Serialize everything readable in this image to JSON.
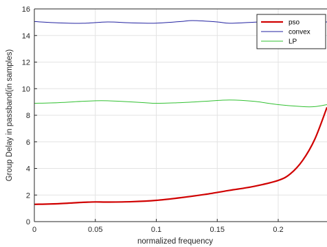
{
  "chart_data": {
    "type": "line",
    "title": "",
    "xlabel": "normalized frequency",
    "ylabel": "Group Delay in passband(in samples)",
    "xlim": [
      0,
      0.24
    ],
    "ylim": [
      0,
      16
    ],
    "xticks": [
      0,
      0.05,
      0.1,
      0.15,
      0.2
    ],
    "xtick_labels": [
      "0",
      "0.05",
      "0.1",
      "0.15",
      "0.2"
    ],
    "yticks": [
      0,
      2,
      4,
      6,
      8,
      10,
      12,
      14,
      16
    ],
    "ytick_labels": [
      "0",
      "2",
      "4",
      "6",
      "8",
      "10",
      "12",
      "14",
      "16"
    ],
    "grid": true,
    "legend_position": "top-right",
    "series": [
      {
        "name": "pso",
        "color": "#d00000",
        "x": [
          0,
          0.02,
          0.04,
          0.05,
          0.06,
          0.08,
          0.1,
          0.12,
          0.14,
          0.16,
          0.18,
          0.2,
          0.21,
          0.22,
          0.23,
          0.24
        ],
        "y": [
          1.3,
          1.35,
          1.45,
          1.48,
          1.47,
          1.5,
          1.6,
          1.8,
          2.05,
          2.35,
          2.65,
          3.1,
          3.6,
          4.6,
          6.2,
          8.6
        ]
      },
      {
        "name": "convex",
        "color": "#2020a0",
        "x": [
          0,
          0.02,
          0.04,
          0.06,
          0.08,
          0.1,
          0.12,
          0.13,
          0.15,
          0.16,
          0.18,
          0.2,
          0.22,
          0.24
        ],
        "y": [
          15.05,
          14.95,
          14.92,
          15.02,
          14.95,
          14.93,
          15.05,
          15.12,
          15.02,
          14.92,
          15.0,
          15.1,
          15.0,
          15.02
        ]
      },
      {
        "name": "LP",
        "color": "#30c030",
        "x": [
          0,
          0.02,
          0.04,
          0.055,
          0.07,
          0.09,
          0.1,
          0.12,
          0.14,
          0.16,
          0.18,
          0.2,
          0.22,
          0.23,
          0.24
        ],
        "y": [
          8.9,
          8.95,
          9.05,
          9.1,
          9.05,
          8.95,
          8.9,
          8.95,
          9.05,
          9.15,
          9.05,
          8.8,
          8.65,
          8.65,
          8.8
        ]
      }
    ]
  }
}
